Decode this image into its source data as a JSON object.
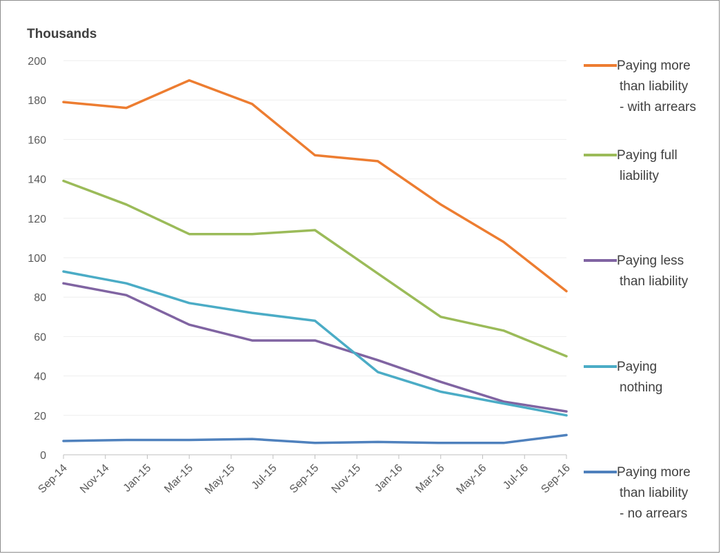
{
  "chart_data": {
    "type": "line",
    "title": "",
    "unit_label": "Thousands",
    "ylim": [
      0,
      200
    ],
    "y_ticks": [
      0,
      20,
      40,
      60,
      80,
      100,
      120,
      140,
      160,
      180,
      200
    ],
    "x_ticks": [
      "Sep-14",
      "Nov-14",
      "Jan-15",
      "Mar-15",
      "May-15",
      "Jul-15",
      "Sep-15",
      "Nov-15",
      "Jan-16",
      "Mar-16",
      "May-16",
      "Jul-16",
      "Sep-16"
    ],
    "x": [
      "Sep-14",
      "Dec-14",
      "Mar-15",
      "Jun-15",
      "Sep-15",
      "Dec-15",
      "Mar-16",
      "Jun-16",
      "Sep-16"
    ],
    "grid": true,
    "legend_position": "right",
    "series": [
      {
        "name": "Paying more than liability - with arrears",
        "legend_lines": [
          "Paying more",
          "than liability",
          "- with arrears"
        ],
        "color": "#ED7D31",
        "values": [
          179,
          176,
          190,
          178,
          152,
          149,
          127,
          108,
          83
        ]
      },
      {
        "name": "Paying full liability",
        "legend_lines": [
          "Paying full",
          "liability"
        ],
        "color": "#9BBB59",
        "values": [
          139,
          127,
          112,
          112,
          114,
          92,
          70,
          63,
          50
        ]
      },
      {
        "name": "Paying less than liability",
        "legend_lines": [
          "Paying less",
          "than liability"
        ],
        "color": "#8064A2",
        "values": [
          87,
          81,
          66,
          58,
          58,
          48,
          37,
          27,
          22
        ]
      },
      {
        "name": "Paying nothing",
        "legend_lines": [
          "Paying",
          "nothing"
        ],
        "color": "#4BACC6",
        "values": [
          93,
          87,
          77,
          72,
          68,
          42,
          32,
          26,
          20
        ]
      },
      {
        "name": "Paying more than liability - no arrears",
        "legend_lines": [
          "Paying more",
          "than liability",
          "- no arrears"
        ],
        "color": "#4F81BD",
        "values": [
          7,
          7.5,
          7.5,
          8,
          6,
          6.5,
          6,
          6,
          10
        ]
      }
    ]
  }
}
